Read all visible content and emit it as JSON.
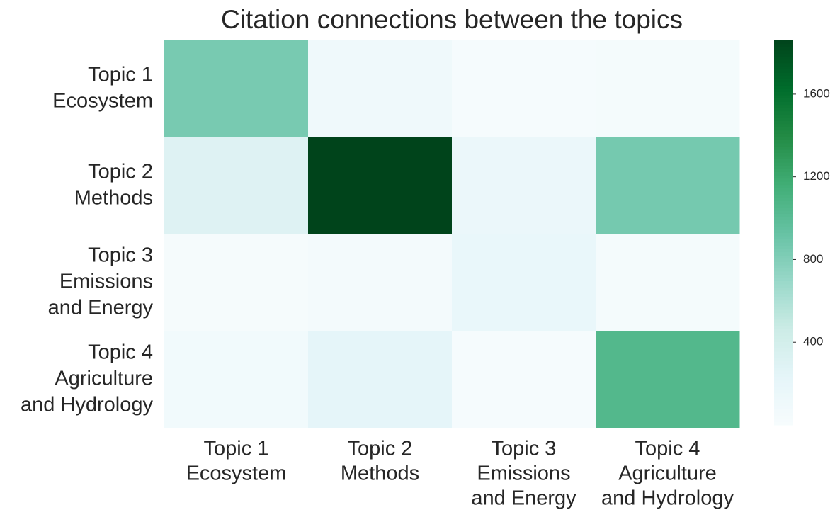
{
  "chart_data": {
    "type": "heatmap",
    "title": "Citation connections between the topics",
    "x_categories": [
      [
        "Topic 1",
        "Ecosystem"
      ],
      [
        "Topic 2",
        "Methods"
      ],
      [
        "Topic 3",
        "Emissions",
        "and Energy"
      ],
      [
        "Topic 4",
        "Agriculture",
        "and Hydrology"
      ]
    ],
    "y_categories": [
      [
        "Topic 1",
        "Ecosystem"
      ],
      [
        "Topic 2",
        "Methods"
      ],
      [
        "Topic 3",
        "Emissions",
        "and Energy"
      ],
      [
        "Topic 4",
        "Agriculture",
        "and Hydrology"
      ]
    ],
    "values": [
      [
        850,
        100,
        20,
        40
      ],
      [
        300,
        1860,
        150,
        860
      ],
      [
        30,
        50,
        180,
        40
      ],
      [
        80,
        230,
        20,
        1050
      ]
    ],
    "colormap": [
      "#f7fcfd",
      "#e5f5f9",
      "#ccece6",
      "#99d8c9",
      "#66c2a4",
      "#41ae76",
      "#238b45",
      "#006d2c",
      "#00441b"
    ],
    "clim": [
      0,
      1860
    ],
    "cticks": [
      400,
      800,
      1200,
      1600
    ]
  }
}
